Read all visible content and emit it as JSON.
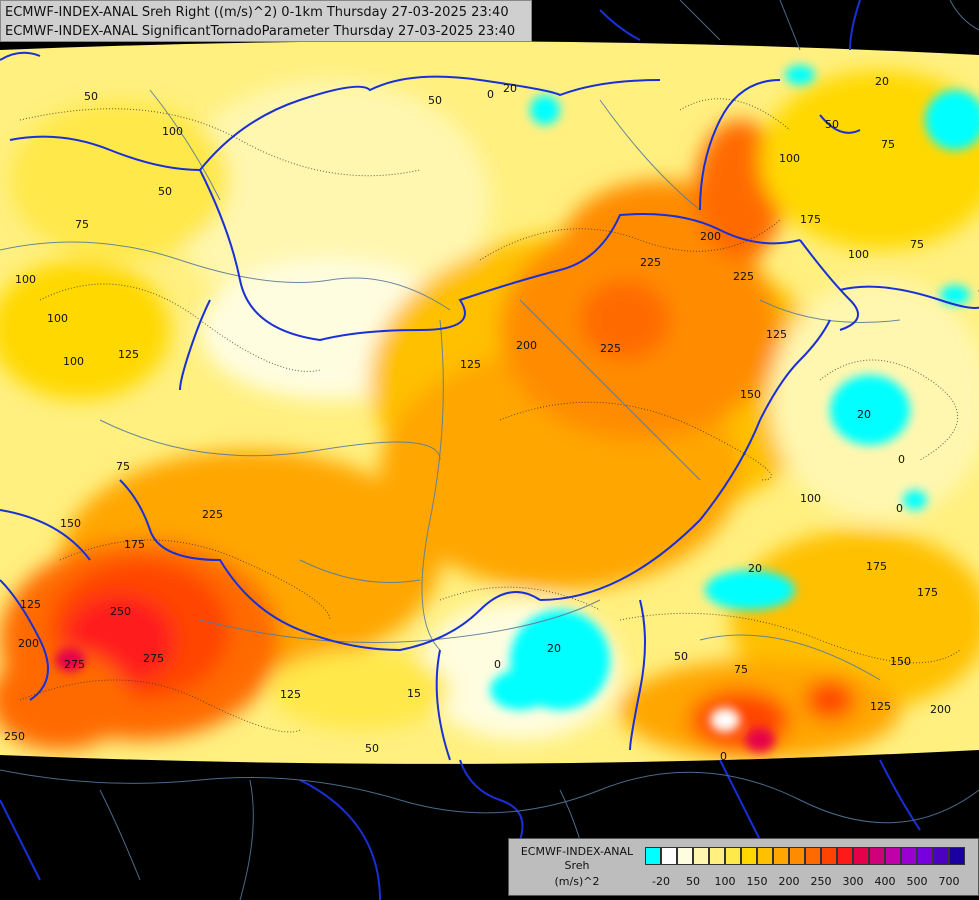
{
  "title": {
    "line1": "ECMWF-INDEX-ANAL Sreh Right ((m/s)^2) 0-1km Thursday 27-03-2025 23:40",
    "line2": "ECMWF-INDEX-ANAL SignificantTornadoParameter Thursday 27-03-2025 23:40"
  },
  "legend": {
    "title_line1": "ECMWF-INDEX-ANAL",
    "title_line2": "Sreh",
    "title_line3": "(m/s)^2",
    "colors": [
      "#00ffff",
      "#ffffff",
      "#fffde0",
      "#fff7b0",
      "#fff080",
      "#ffe84a",
      "#ffd800",
      "#ffc000",
      "#ffa600",
      "#ff8c00",
      "#ff6a00",
      "#ff4400",
      "#ff1a1a",
      "#e6004c",
      "#d0007a",
      "#c000a8",
      "#9a00d0",
      "#7800e0",
      "#4c00c0",
      "#1a00a0"
    ],
    "ticks": [
      "-20",
      "50",
      "100",
      "150",
      "200",
      "250",
      "300",
      "400",
      "500",
      "700"
    ]
  },
  "contour_labels": [
    "0",
    "0",
    "0",
    "0",
    "20",
    "20",
    "20",
    "20",
    "20",
    "50",
    "50",
    "50",
    "50",
    "50",
    "75",
    "75",
    "75",
    "75",
    "75",
    "100",
    "100",
    "100",
    "100",
    "100",
    "100",
    "125",
    "125",
    "125",
    "125",
    "125",
    "150",
    "150",
    "150",
    "175",
    "175",
    "175",
    "175",
    "200",
    "200",
    "200",
    "200",
    "225",
    "225",
    "225",
    "225",
    "250",
    "250",
    "275",
    "275",
    "15",
    "100",
    "0",
    "50",
    "125"
  ]
}
